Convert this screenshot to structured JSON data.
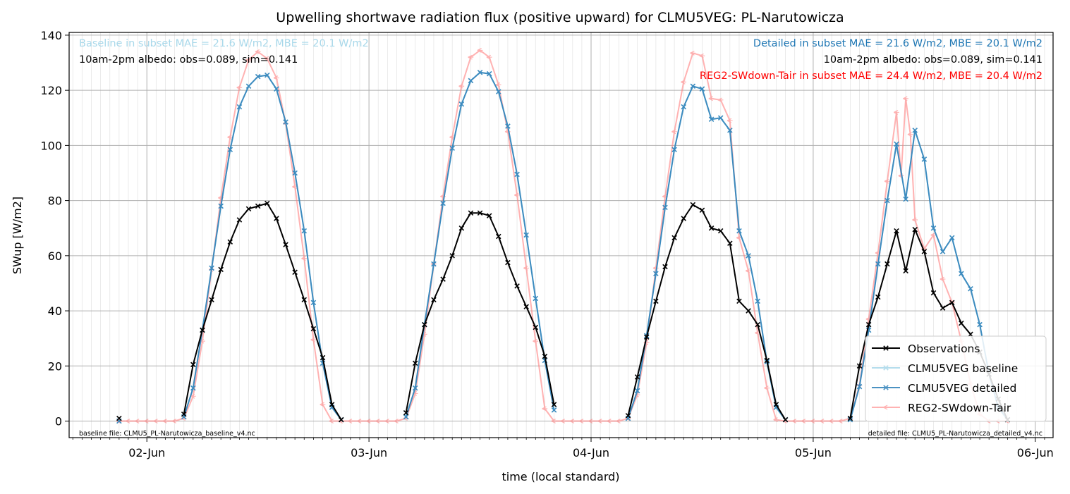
{
  "chart_data": {
    "type": "line",
    "title": "Upwelling shortwave radiation flux (positive upward) for CLMU5VEG: PL-Narutowicza",
    "xlabel": "time (local standard)",
    "ylabel": "SWup [W/m2]",
    "xlim": [
      -0.35,
      4.08
    ],
    "ylim": [
      -6,
      141
    ],
    "x_unit": "days since 02-Jun 00:00 (local standard)",
    "x_ticks": [
      {
        "value": 0,
        "label": "02-Jun"
      },
      {
        "value": 1,
        "label": "03-Jun"
      },
      {
        "value": 2,
        "label": "04-Jun"
      },
      {
        "value": 3,
        "label": "05-Jun"
      },
      {
        "value": 4,
        "label": "06-Jun"
      }
    ],
    "y_ticks": [
      0,
      20,
      40,
      60,
      80,
      100,
      120,
      140
    ],
    "grid": true,
    "legend_position": "lower right",
    "series": [
      {
        "name": "Observations",
        "color": "#000000",
        "marker": "x",
        "opacity": 1,
        "x": [
          -0.125,
          0.1667,
          0.2083,
          0.25,
          0.2917,
          0.3333,
          0.375,
          0.4167,
          0.4583,
          0.5,
          0.5417,
          0.5833,
          0.625,
          0.6667,
          0.7083,
          0.75,
          0.7917,
          0.8333,
          0.875,
          1.1667,
          1.2083,
          1.25,
          1.2917,
          1.3333,
          1.375,
          1.4167,
          1.4583,
          1.5,
          1.5417,
          1.5833,
          1.625,
          1.6667,
          1.7083,
          1.75,
          1.7917,
          1.8333,
          2.1667,
          2.2083,
          2.25,
          2.2917,
          2.3333,
          2.375,
          2.4167,
          2.4583,
          2.5,
          2.5417,
          2.5833,
          2.625,
          2.6667,
          2.7083,
          2.75,
          2.7917,
          2.8333,
          2.875,
          3.1667,
          3.2083,
          3.25,
          3.2917,
          3.3333,
          3.375,
          3.4167,
          3.4583,
          3.5,
          3.5417,
          3.5833,
          3.625,
          3.6667,
          3.7083,
          3.75,
          3.7917,
          3.8333,
          3.875
        ],
        "y": [
          1,
          2.5,
          20.5,
          33,
          44,
          55,
          65,
          73,
          77,
          78,
          79,
          73.5,
          64,
          54,
          44,
          33.5,
          23,
          6,
          0.5,
          3,
          21,
          35,
          44,
          51.5,
          60,
          70,
          75.5,
          75.5,
          74.5,
          67,
          57.5,
          49,
          41.5,
          34,
          23.5,
          6,
          2,
          16,
          30.5,
          43.5,
          56,
          66.5,
          73.5,
          78.5,
          76.5,
          70,
          69,
          64.5,
          43.5,
          40,
          35,
          22,
          6,
          0.5,
          1,
          20,
          35,
          45,
          57,
          69,
          54.5,
          69.5,
          61.5,
          46.5,
          41,
          43,
          35.5,
          31.5,
          25,
          17,
          8,
          0.5
        ]
      },
      {
        "name": "CLMU5VEG baseline",
        "color": "#a8d8ea",
        "marker": "x",
        "opacity": 0.85,
        "x": [
          -0.125,
          0.1667,
          0.2083,
          0.25,
          0.2917,
          0.3333,
          0.375,
          0.4167,
          0.4583,
          0.5,
          0.5417,
          0.5833,
          0.625,
          0.6667,
          0.7083,
          0.75,
          0.7917,
          0.8333,
          0.875,
          1.1667,
          1.2083,
          1.25,
          1.2917,
          1.3333,
          1.375,
          1.4167,
          1.4583,
          1.5,
          1.5417,
          1.5833,
          1.625,
          1.6667,
          1.7083,
          1.75,
          1.7917,
          1.8333,
          2.1667,
          2.2083,
          2.25,
          2.2917,
          2.3333,
          2.375,
          2.4167,
          2.4583,
          2.5,
          2.5417,
          2.5833,
          2.625,
          2.6667,
          2.7083,
          2.75,
          2.7917,
          2.8333,
          2.875,
          3.1667,
          3.2083,
          3.25,
          3.2917,
          3.3333,
          3.375,
          3.4167,
          3.4583,
          3.5,
          3.5417,
          3.5833,
          3.625,
          3.6667,
          3.7083,
          3.75,
          3.7917,
          3.8333,
          3.875
        ],
        "y": [
          0,
          1.5,
          12,
          33,
          55.5,
          78,
          98.5,
          114,
          121.5,
          125,
          125.5,
          120.5,
          108.5,
          90,
          69,
          43,
          21,
          5,
          0.5,
          1.5,
          12,
          35,
          57,
          79,
          99,
          115,
          123.5,
          126.5,
          126,
          119.5,
          107,
          89.5,
          67.5,
          44.5,
          22,
          4,
          1,
          11,
          31,
          53.5,
          77.5,
          98.5,
          114,
          121.5,
          120.5,
          109.5,
          110,
          105.5,
          69,
          60,
          43.5,
          21.5,
          5,
          0.5,
          0.5,
          12.5,
          33,
          57,
          80,
          100.5,
          80.5,
          105.5,
          95,
          70,
          61.5,
          66.5,
          53.5,
          48,
          35,
          17,
          5,
          0.5
        ]
      },
      {
        "name": "CLMU5VEG detailed",
        "color": "#1f77b4",
        "marker": "x",
        "opacity": 0.8,
        "x": [
          -0.125,
          0.1667,
          0.2083,
          0.25,
          0.2917,
          0.3333,
          0.375,
          0.4167,
          0.4583,
          0.5,
          0.5417,
          0.5833,
          0.625,
          0.6667,
          0.7083,
          0.75,
          0.7917,
          0.8333,
          0.875,
          1.1667,
          1.2083,
          1.25,
          1.2917,
          1.3333,
          1.375,
          1.4167,
          1.4583,
          1.5,
          1.5417,
          1.5833,
          1.625,
          1.6667,
          1.7083,
          1.75,
          1.7917,
          1.8333,
          2.1667,
          2.2083,
          2.25,
          2.2917,
          2.3333,
          2.375,
          2.4167,
          2.4583,
          2.5,
          2.5417,
          2.5833,
          2.625,
          2.6667,
          2.7083,
          2.75,
          2.7917,
          2.8333,
          2.875,
          3.1667,
          3.2083,
          3.25,
          3.2917,
          3.3333,
          3.375,
          3.4167,
          3.4583,
          3.5,
          3.5417,
          3.5833,
          3.625,
          3.6667,
          3.7083,
          3.75,
          3.7917,
          3.8333,
          3.875
        ],
        "y": [
          0,
          1.5,
          12,
          33,
          55.5,
          78,
          98.5,
          114,
          121.5,
          125,
          125.5,
          120.5,
          108.5,
          90,
          69,
          43,
          21,
          5,
          0.5,
          1.5,
          12,
          35,
          57,
          79,
          99,
          115,
          123.5,
          126.5,
          126,
          119.5,
          107,
          89.5,
          67.5,
          44.5,
          22,
          4,
          1,
          11,
          31,
          53.5,
          77.5,
          98.5,
          114,
          121.5,
          120.5,
          109.5,
          110,
          105.5,
          69,
          60,
          43.5,
          21.5,
          5,
          0.5,
          0.5,
          12.5,
          33,
          57,
          80,
          100.5,
          80.5,
          105.5,
          95,
          70,
          61.5,
          66.5,
          53.5,
          48,
          35,
          17,
          5,
          0.5
        ]
      },
      {
        "name": "REG2-SWdown-Tair",
        "color": "#ff7f7f",
        "marker": "tri_left",
        "opacity": 0.6,
        "x": [
          -0.125,
          -0.0833,
          -0.0417,
          0,
          0.0417,
          0.0833,
          0.125,
          0.1667,
          0.2083,
          0.25,
          0.2917,
          0.3333,
          0.375,
          0.4167,
          0.4583,
          0.5,
          0.5417,
          0.5833,
          0.625,
          0.6667,
          0.7083,
          0.75,
          0.7917,
          0.8333,
          0.875,
          0.9167,
          0.9583,
          1,
          1.0417,
          1.0833,
          1.125,
          1.1667,
          1.2083,
          1.25,
          1.2917,
          1.3333,
          1.375,
          1.4167,
          1.4583,
          1.5,
          1.5417,
          1.5833,
          1.625,
          1.6667,
          1.7083,
          1.75,
          1.7917,
          1.8333,
          1.875,
          1.9167,
          1.9583,
          2,
          2.0417,
          2.0833,
          2.125,
          2.1667,
          2.2083,
          2.25,
          2.2917,
          2.3333,
          2.375,
          2.4167,
          2.4583,
          2.5,
          2.5417,
          2.5833,
          2.625,
          2.6667,
          2.7083,
          2.75,
          2.7917,
          2.8333,
          2.875,
          2.9167,
          2.9583,
          3,
          3.0417,
          3.0833,
          3.125,
          3.1667,
          3.2083,
          3.25,
          3.2917,
          3.3333,
          3.375,
          3.3958,
          3.4167,
          3.4375,
          3.4583,
          3.5,
          3.5417,
          3.5833,
          3.625,
          3.6667,
          3.7083,
          3.75,
          3.7917,
          3.8333,
          3.875
        ],
        "y": [
          0,
          0,
          0,
          0,
          0,
          0,
          0,
          1,
          9,
          29,
          55,
          81,
          103,
          121,
          131,
          134,
          131.5,
          124.5,
          108,
          85,
          59,
          29.5,
          6,
          0,
          0,
          0,
          0,
          0,
          0,
          0,
          0,
          1,
          10,
          31.5,
          57,
          81.5,
          103,
          121.5,
          132,
          134.5,
          132,
          122,
          105,
          82,
          55.5,
          29,
          4.5,
          0,
          0,
          0,
          0,
          0,
          0,
          0,
          0,
          1,
          9.5,
          28.5,
          55.5,
          81.5,
          105,
          123,
          133.5,
          132.5,
          117,
          116.5,
          109,
          66.5,
          54.5,
          32,
          12,
          0.5,
          0,
          0,
          0,
          0,
          0,
          0,
          0,
          1,
          13,
          37,
          61,
          87,
          112,
          89,
          117,
          104,
          73,
          62.5,
          67.5,
          51.5,
          43,
          29,
          13.5,
          2.5,
          0,
          0,
          0
        ]
      }
    ]
  },
  "annotations": {
    "baseline_stats": "Baseline in subset MAE = 21.6 W/m2, MBE = 20.1 W/m2",
    "baseline_albedo": "10am-2pm albedo: obs=0.089, sim=0.141",
    "detailed_stats": "Detailed in subset MAE = 21.6 W/m2, MBE = 20.1 W/m2",
    "detailed_albedo": "10am-2pm albedo: obs=0.089, sim=0.141",
    "reg2_stats": "REG2-SWdown-Tair in subset MAE = 24.4 W/m2, MBE = 20.4 W/m2",
    "baseline_file": "baseline file: CLMU5_PL-Narutowicza_baseline_v4.nc",
    "detailed_file": "detailed file: CLMU5_PL-Narutowicza_detailed_v4.nc"
  },
  "colors": {
    "baseline_text": "#a8d8ea",
    "detailed_text": "#1f77b4",
    "reg2_text": "#ff0000",
    "grid_major": "#b0b0b0",
    "grid_minor": "#e6e6e6"
  }
}
